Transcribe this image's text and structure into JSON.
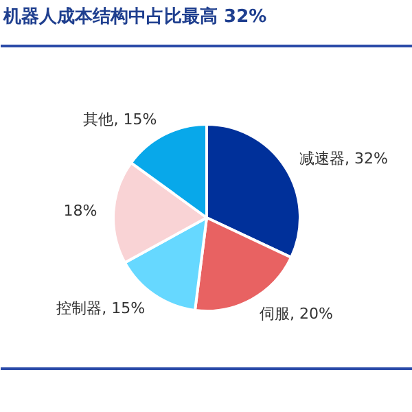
{
  "chart_data": {
    "type": "pie",
    "title": "机器人成本结构中占比最高 32%",
    "categories": [
      "减速器",
      "伺服",
      "控制器",
      null,
      "其他"
    ],
    "values": [
      32,
      20,
      15,
      18,
      15
    ],
    "value_labels": [
      "32%",
      "20%",
      "15%",
      "18%",
      "15%"
    ],
    "colors": [
      "#00309a",
      "#e86262",
      "#66d8ff",
      "#f9d3d5",
      "#08a8ea"
    ]
  }
}
